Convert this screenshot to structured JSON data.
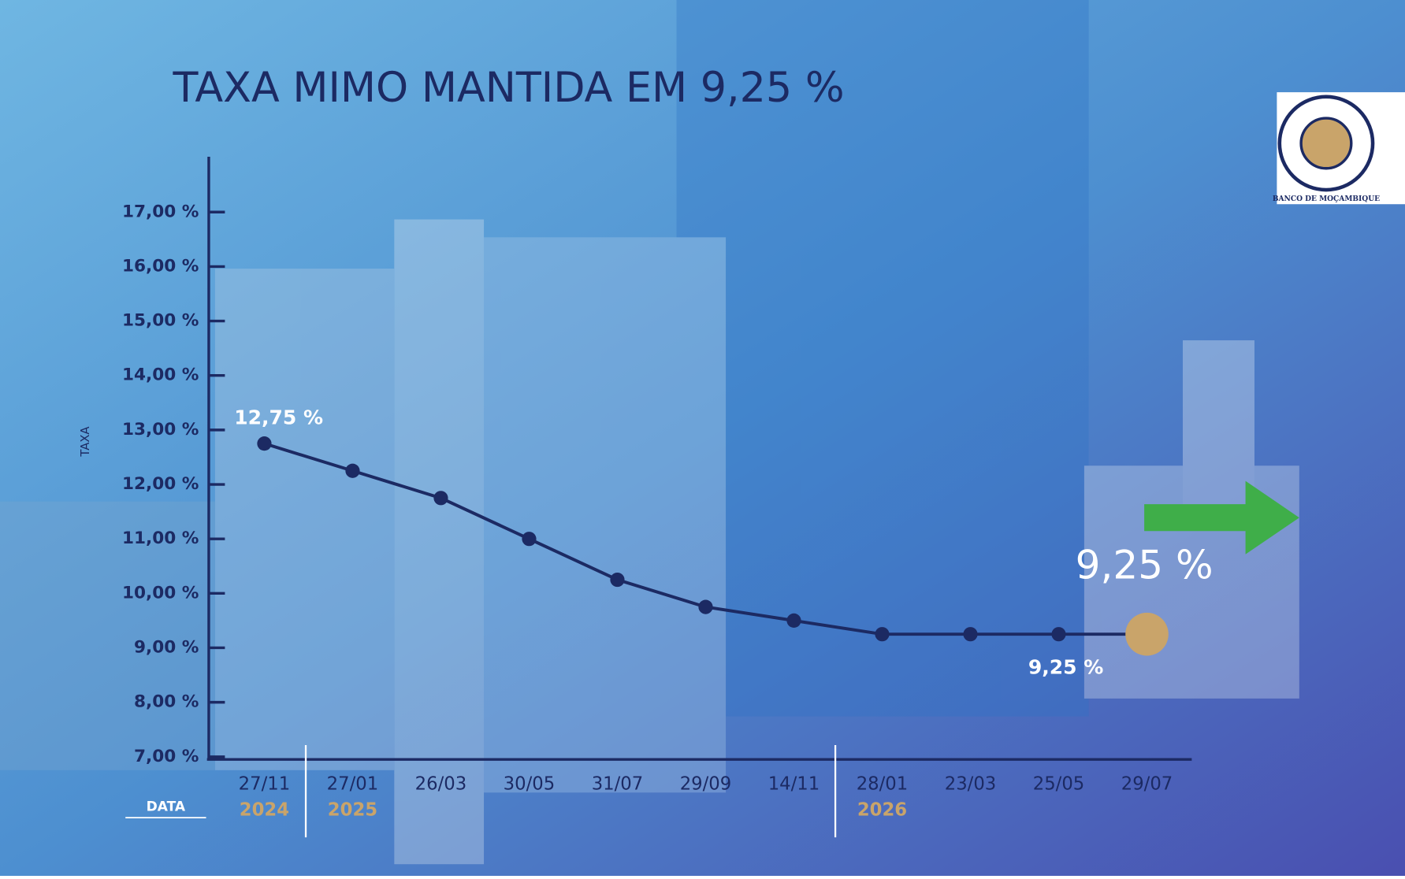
{
  "chart_data": {
    "type": "line",
    "title": "TAXA MIMO MANTIDA EM 9,25 %",
    "y_label": "TAXA",
    "x_label": "DATA",
    "logo_text": "BANCO DE MOÇAMBIQUE",
    "categories": [
      "27/11",
      "27/01",
      "26/03",
      "30/05",
      "31/07",
      "29/09",
      "14/11",
      "28/01",
      "23/03",
      "25/05",
      "29/07"
    ],
    "year_labels": [
      "2024",
      "2025",
      null,
      null,
      null,
      null,
      null,
      "2026",
      null,
      null,
      null
    ],
    "series": [
      {
        "name": "Taxa MIMO",
        "color": "#1c2a63",
        "values": [
          12.75,
          12.25,
          11.75,
          11.0,
          10.25,
          9.75,
          9.5,
          9.25,
          9.25,
          9.25,
          9.25
        ],
        "value_labels": [
          "12,75 %",
          null,
          null,
          null,
          null,
          null,
          null,
          null,
          null,
          "9,25 %",
          "9,25 %"
        ]
      }
    ],
    "ylim": [
      7,
      18
    ],
    "yticks": [
      {
        "value": 7,
        "label": "7,00 %"
      },
      {
        "value": 8,
        "label": "8,00 %"
      },
      {
        "value": 9,
        "label": "9,00 %"
      },
      {
        "value": 10,
        "label": "10,00 %"
      },
      {
        "value": 11,
        "label": "11,00 %"
      },
      {
        "value": 12,
        "label": "12,00 %"
      },
      {
        "value": 13,
        "label": "13,00 %"
      },
      {
        "value": 14,
        "label": "14,00 %"
      },
      {
        "value": 15,
        "label": "15,00 %"
      },
      {
        "value": 16,
        "label": "16,00 %"
      },
      {
        "value": 17,
        "label": "17,00 %"
      }
    ],
    "highlight_color": "#c9a46a",
    "arrow_color": "#3fae49"
  }
}
